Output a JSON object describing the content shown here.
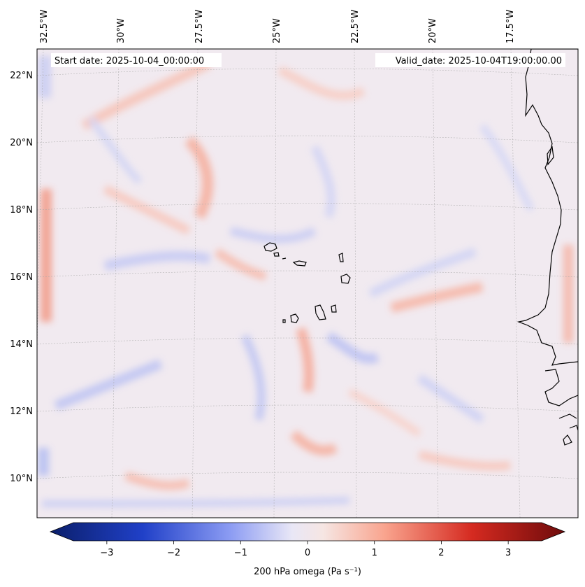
{
  "header": {
    "start_date": "Start date: 2025-10-04_00:00:00",
    "valid_date": "Valid_date: 2025-10-04T19:00:00.00"
  },
  "map": {
    "variable": "200 hPa omega",
    "lon_labels": [
      "32.5°W",
      "30°W",
      "27.5°W",
      "25°W",
      "22.5°W",
      "20°W",
      "17.5°W"
    ],
    "lat_labels": [
      "22°N",
      "20°N",
      "18°N",
      "16°N",
      "14°N",
      "12°N",
      "10°N"
    ],
    "extent": {
      "lon_min": -33.0,
      "lon_max": -15.3,
      "lat_min": 8.9,
      "lat_max": 22.8
    },
    "colormap": "coolwarm-diverging"
  },
  "colorbar": {
    "label": "200 hPa omega (Pa s⁻¹)",
    "ticks": [
      "−3",
      "−2",
      "−1",
      "0",
      "1",
      "2",
      "3"
    ],
    "tick_values": [
      -3,
      -2,
      -1,
      0,
      1,
      2,
      3
    ],
    "range": [
      -3.5,
      3.5
    ],
    "extend": "both"
  },
  "colors": {
    "negative_extreme": "#0b1f6b",
    "negative_mid": "#3b5bdb",
    "neutral": "#f1eeee",
    "positive_mid": "#f26b4f",
    "positive_extreme": "#6e0b0b",
    "coast": "#000000"
  }
}
